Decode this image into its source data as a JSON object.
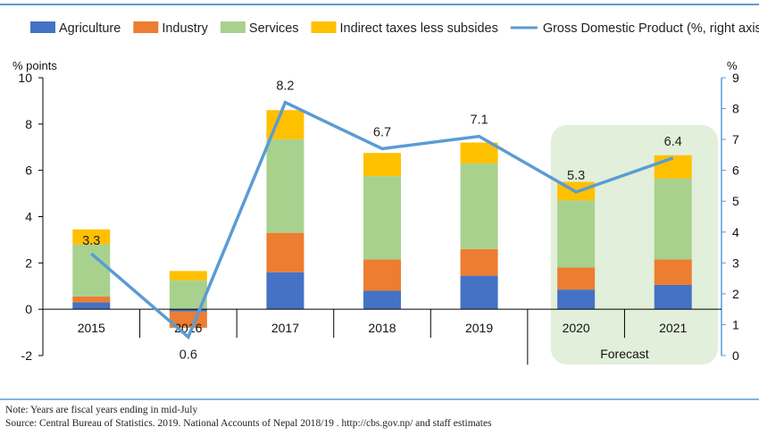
{
  "chart_data": {
    "type": "bar",
    "stacked": true,
    "categories": [
      "2015",
      "2016",
      "2017",
      "2018",
      "2019",
      "2020",
      "2021"
    ],
    "series": [
      {
        "name": "Agriculture",
        "color": "#4472C4",
        "values": [
          0.3,
          -0.1,
          1.6,
          0.8,
          1.45,
          0.85,
          1.05
        ]
      },
      {
        "name": "Industry",
        "color": "#ED7D31",
        "values": [
          0.25,
          -0.7,
          1.7,
          1.35,
          1.15,
          0.95,
          1.1
        ]
      },
      {
        "name": "Services",
        "color": "#A9D18E",
        "values": [
          2.25,
          1.25,
          4.05,
          3.6,
          3.7,
          2.9,
          3.5
        ]
      },
      {
        "name": "Indirect taxes less subsides",
        "color": "#FFC000",
        "values": [
          0.65,
          0.4,
          1.25,
          1.0,
          0.9,
          0.8,
          1.0
        ]
      }
    ],
    "line": {
      "name": "Gross Domestic Product (%, right axis)",
      "color": "#5B9BD5",
      "values": [
        3.3,
        0.6,
        8.2,
        6.7,
        7.1,
        5.3,
        6.4
      ],
      "labels": [
        "3.3",
        "0.6",
        "8.2",
        "6.7",
        "7.1",
        "5.3",
        "6.4"
      ]
    },
    "left_axis": {
      "label": "% points",
      "min": -2,
      "max": 10,
      "ticks": [
        "-2",
        "0",
        "2",
        "4",
        "6",
        "8",
        "10"
      ]
    },
    "right_axis": {
      "label": "%",
      "min": 0,
      "max": 9,
      "ticks": [
        "0",
        "1",
        "2",
        "3",
        "4",
        "5",
        "6",
        "7",
        "8",
        "9"
      ]
    },
    "forecast": {
      "label": "Forecast",
      "categories": [
        "2020",
        "2021"
      ],
      "fill": "#E2EFDA"
    },
    "legend_position": "top",
    "grid": false
  },
  "notes": {
    "note": "Note: Years are fiscal years ending in mid-July",
    "source": "Source: Central Bureau of Statistics. 2019. National Accounts of Nepal 2018/19 . http://cbs.gov.np/ and staff estimates"
  },
  "colors": {
    "divider": "#5B9BD5",
    "axis": "#000000"
  }
}
